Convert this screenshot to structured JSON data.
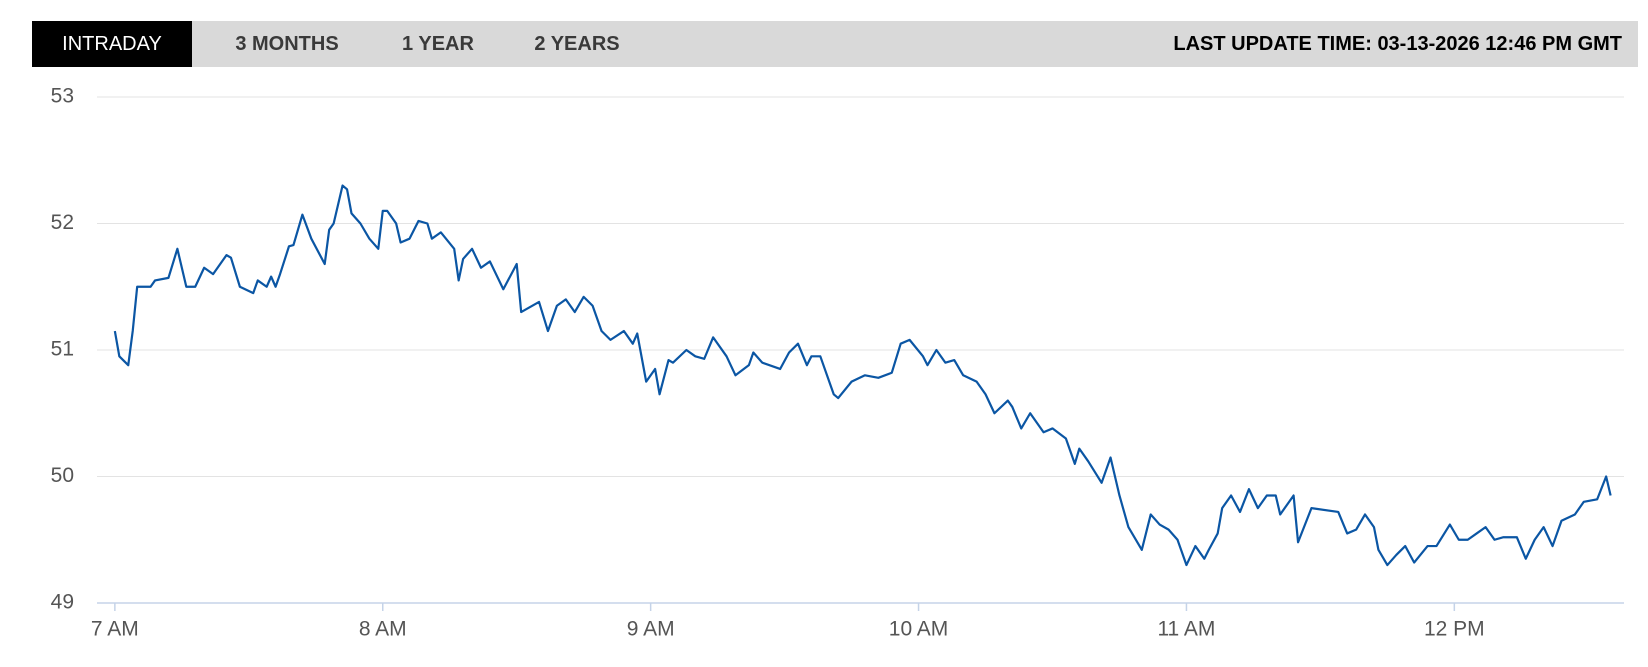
{
  "tabs": [
    "INTRADAY",
    "3 MONTHS",
    "1 YEAR",
    "2 YEARS"
  ],
  "last_update": "LAST UPDATE TIME: 03-13-2026 12:46 PM GMT",
  "chart_data": {
    "type": "line",
    "x": [
      420,
      421,
      423,
      424,
      425,
      428,
      429,
      432,
      434,
      436,
      438,
      440,
      442,
      445,
      446,
      448,
      451,
      452,
      454,
      455,
      456,
      457,
      459,
      460,
      462,
      464,
      467,
      468,
      469,
      471,
      472,
      473,
      475,
      477,
      479,
      480,
      481,
      483,
      484,
      486,
      488,
      490,
      491,
      493,
      496,
      497,
      498,
      500,
      502,
      504,
      507,
      510,
      511,
      515,
      517,
      519,
      521,
      523,
      525,
      527,
      529,
      531,
      534,
      536,
      537,
      539,
      541,
      542,
      544,
      545,
      548,
      550,
      552,
      554,
      557,
      559,
      562,
      563,
      565,
      569,
      571,
      573,
      575,
      576,
      578,
      581,
      582,
      585,
      588,
      591,
      594,
      596,
      598,
      601,
      602,
      604,
      606,
      608,
      610,
      613,
      615,
      617,
      620,
      621,
      623,
      625,
      628,
      630,
      633,
      635,
      636,
      638,
      641,
      643,
      645,
      647,
      650,
      652,
      654,
      656,
      658,
      660,
      662,
      664,
      665,
      667,
      668,
      670,
      672,
      674,
      676,
      678,
      680,
      681,
      684,
      685,
      688,
      694,
      696,
      698,
      700,
      702,
      703,
      705,
      707,
      709,
      711,
      714,
      716,
      719,
      721,
      723,
      725,
      727,
      729,
      731,
      734,
      736,
      738,
      740,
      742,
      744,
      747,
      749,
      752,
      754,
      755
    ],
    "series": [
      {
        "color": "#0b56a4",
        "values": [
          51.15,
          50.95,
          50.88,
          51.15,
          51.5,
          51.5,
          51.55,
          51.57,
          51.8,
          51.5,
          51.5,
          51.65,
          51.6,
          51.75,
          51.73,
          51.5,
          51.45,
          51.55,
          51.5,
          51.58,
          51.5,
          51.6,
          51.82,
          51.83,
          52.07,
          51.88,
          51.68,
          51.95,
          52.0,
          52.3,
          52.27,
          52.08,
          52.0,
          51.88,
          51.8,
          52.1,
          52.1,
          52.0,
          51.85,
          51.88,
          52.02,
          52.0,
          51.88,
          51.93,
          51.8,
          51.55,
          51.72,
          51.8,
          51.65,
          51.7,
          51.48,
          51.68,
          51.3,
          51.38,
          51.15,
          51.35,
          51.4,
          51.3,
          51.42,
          51.35,
          51.15,
          51.08,
          51.15,
          51.05,
          51.13,
          50.75,
          50.85,
          50.65,
          50.92,
          50.9,
          51.0,
          50.95,
          50.93,
          51.1,
          50.95,
          50.8,
          50.88,
          50.98,
          50.9,
          50.85,
          50.98,
          51.05,
          50.88,
          50.95,
          50.95,
          50.65,
          50.62,
          50.75,
          50.8,
          50.78,
          50.82,
          51.05,
          51.08,
          50.95,
          50.88,
          51.0,
          50.9,
          50.92,
          50.8,
          50.75,
          50.65,
          50.5,
          50.6,
          50.55,
          50.38,
          50.5,
          50.35,
          50.38,
          50.3,
          50.1,
          50.22,
          50.12,
          49.95,
          50.15,
          49.85,
          49.6,
          49.42,
          49.7,
          49.62,
          49.58,
          49.5,
          49.3,
          49.45,
          49.35,
          49.42,
          49.55,
          49.75,
          49.85,
          49.72,
          49.9,
          49.75,
          49.85,
          49.85,
          49.7,
          49.85,
          49.48,
          49.75,
          49.72,
          49.55,
          49.58,
          49.7,
          49.6,
          49.42,
          49.3,
          49.38,
          49.45,
          49.32,
          49.45,
          49.45,
          49.62,
          49.5,
          49.5,
          49.55,
          49.6,
          49.5,
          49.52,
          49.52,
          49.35,
          49.5,
          49.6,
          49.45,
          49.65,
          49.7,
          49.8,
          49.82,
          50.0,
          49.85
        ]
      }
    ],
    "xlim": [
      416,
      758
    ],
    "xticks": [
      {
        "value": 420,
        "label": "7 AM"
      },
      {
        "value": 480,
        "label": "8 AM"
      },
      {
        "value": 540,
        "label": "9 AM"
      },
      {
        "value": 600,
        "label": "10 AM"
      },
      {
        "value": 660,
        "label": "11 AM"
      },
      {
        "value": 720,
        "label": "12 PM"
      }
    ],
    "ylim": [
      49,
      53
    ],
    "yticks": [
      49,
      50,
      51,
      52,
      53
    ],
    "grid": true
  }
}
